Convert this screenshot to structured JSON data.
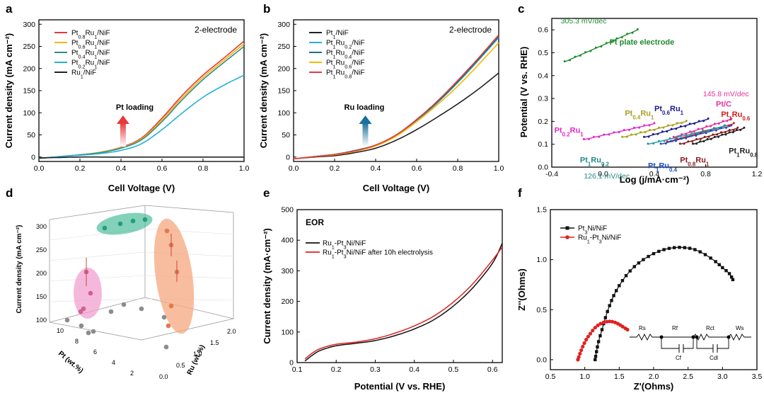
{
  "chart_data": [
    {
      "panel": "a",
      "type": "line",
      "annotation": "2-electrode",
      "arrow_label": "Pt loading",
      "xlabel": "Cell Voltage (V)",
      "ylabel": "Current density (mA cm⁻²)",
      "xlim": [
        0,
        1.0
      ],
      "ylim": [
        -10,
        310
      ],
      "xticks": [
        "0.0",
        "0.2",
        "0.4",
        "0.6",
        "0.8",
        "1.0"
      ],
      "yticks": [
        "0",
        "50",
        "100",
        "150",
        "200",
        "250",
        "300"
      ],
      "x": [
        0,
        0.1,
        0.2,
        0.3,
        0.4,
        0.5,
        0.6,
        0.7,
        0.8,
        0.9,
        1.0
      ],
      "series": [
        {
          "name": "Pt0.8Ru1/NiF",
          "color": "#e8383b",
          "values": [
            -3,
            1,
            5,
            11,
            22,
            43,
            88,
            140,
            185,
            223,
            262
          ]
        },
        {
          "name": "Pt0.6Ru1/NiF",
          "color": "#f5b800",
          "values": [
            -3,
            1,
            5,
            11,
            21,
            41,
            84,
            135,
            180,
            218,
            256
          ]
        },
        {
          "name": "Pt0.4Ru1/NiF",
          "color": "#2e8b8b",
          "values": [
            -3,
            1,
            5,
            10,
            20,
            39,
            80,
            130,
            175,
            213,
            250
          ]
        },
        {
          "name": "Pt0.2Ru1/NiF",
          "color": "#22b2d8",
          "values": [
            -3,
            1,
            4,
            8,
            15,
            30,
            62,
            100,
            135,
            162,
            185
          ]
        },
        {
          "name": "Ru1/NiF",
          "color": "#222222",
          "values": [
            -2,
            -1,
            0,
            0,
            0,
            0,
            0,
            0,
            0,
            0,
            0
          ]
        }
      ]
    },
    {
      "panel": "b",
      "type": "line",
      "annotation": "2-electrode",
      "arrow_label": "Ru loading",
      "xlabel": "Cell Voltage (V)",
      "ylabel": "Current density (mA cm⁻²)",
      "xlim": [
        0,
        1.0
      ],
      "ylim": [
        -10,
        310
      ],
      "xticks": [
        "0.0",
        "0.2",
        "0.4",
        "0.6",
        "0.8",
        "1.0"
      ],
      "yticks": [
        "0",
        "50",
        "100",
        "150",
        "200",
        "250",
        "300"
      ],
      "x": [
        0,
        0.1,
        0.2,
        0.3,
        0.4,
        0.5,
        0.6,
        0.7,
        0.8,
        0.9,
        1.0
      ],
      "series": [
        {
          "name": "Pt1/NiF",
          "color": "#222222",
          "values": [
            -4,
            0,
            3,
            10,
            20,
            38,
            62,
            90,
            120,
            153,
            190
          ]
        },
        {
          "name": "Pt1Ru0.2/NiF",
          "color": "#22b2d8",
          "values": [
            -4,
            1,
            6,
            14,
            26,
            48,
            82,
            122,
            168,
            218,
            270
          ]
        },
        {
          "name": "Pt1Ru0.4/NiF",
          "color": "#1f6f7a",
          "values": [
            -4,
            1,
            6,
            15,
            27,
            50,
            84,
            124,
            170,
            220,
            272
          ]
        },
        {
          "name": "Pt1Ru0.6/NiF",
          "color": "#f5b800",
          "values": [
            -4,
            1,
            5,
            13,
            25,
            47,
            80,
            118,
            160,
            208,
            258
          ]
        },
        {
          "name": "Pt1Ru0.8/NiF",
          "color": "#e8383b",
          "values": [
            -4,
            1,
            6,
            14,
            27,
            50,
            85,
            126,
            173,
            223,
            276
          ]
        }
      ]
    },
    {
      "panel": "c",
      "type": "scatter",
      "xlabel": "Log (j/mA·cm⁻²)",
      "ylabel": "Potential (V vs. RHE)",
      "xlim": [
        -0.4,
        1.2
      ],
      "ylim": [
        0,
        0.65
      ],
      "xticks": [
        "-0.4",
        "0.0",
        "0.4",
        "0.8",
        "1.2"
      ],
      "yticks": [
        "0.0",
        "0.1",
        "0.2",
        "0.3",
        "0.4",
        "0.5",
        "0.6"
      ],
      "series": [
        {
          "name": "Pt plate electrode",
          "color": "#1f8b2e",
          "x": [
            -0.3,
            0.27
          ],
          "y": [
            0.46,
            0.6
          ]
        },
        {
          "name": "Pt0.2Ru1",
          "color": "#e028c9",
          "x": [
            -0.15,
            0.4
          ],
          "y": [
            0.12,
            0.19
          ]
        },
        {
          "name": "Pt0.4Ru1",
          "color": "#a8a020",
          "x": [
            0.15,
            0.65
          ],
          "y": [
            0.13,
            0.2
          ]
        },
        {
          "name": "Pt0.6Ru1",
          "color": "#1a1a8c",
          "x": [
            0.32,
            0.82
          ],
          "y": [
            0.13,
            0.21
          ]
        },
        {
          "name": "Pt/C",
          "color": "#e8309a",
          "x": [
            0.55,
            1.0
          ],
          "y": [
            0.13,
            0.21
          ]
        },
        {
          "name": "Pt1Ru0.6",
          "color": "#d41a1a",
          "x": [
            0.5,
            1.02
          ],
          "y": [
            0.11,
            0.19
          ]
        },
        {
          "name": "Pt1Ru0.2",
          "color": "#1d9c9c",
          "x": [
            0.35,
            0.95
          ],
          "y": [
            0.1,
            0.18
          ]
        },
        {
          "name": "Pt1Ru0.4",
          "color": "#1f4fc8",
          "x": [
            0.45,
            1.0
          ],
          "y": [
            0.1,
            0.18
          ]
        },
        {
          "name": "Pt0.8Ru1",
          "color": "#8b1a1a",
          "x": [
            0.6,
            1.05
          ],
          "y": [
            0.1,
            0.17
          ]
        },
        {
          "name": "Pt1Ru0.8",
          "color": "#222222",
          "x": [
            0.7,
            1.1
          ],
          "y": [
            0.1,
            0.17
          ]
        }
      ],
      "annotations": {
        "pt_slope": "305.3 mV/dec",
        "pt_label": "Pt plate electrode",
        "ptc_slope": "145.8 mV/dec",
        "ptc_label": "Pt/C",
        "low_slope": "126.1 mV/dec"
      }
    },
    {
      "panel": "d",
      "type": "scatter",
      "zlabel": "Current density (mA cm⁻²)",
      "xlabel": "Pt (wt.%)",
      "ylabel": "Ru (wt.%)",
      "zticks": [
        "100",
        "150",
        "200",
        "250",
        "300"
      ],
      "xticks": [
        "10",
        "8",
        "6",
        "4",
        "2"
      ],
      "yticks": [
        "0.0",
        "0.5",
        "1.0",
        "1.5",
        "2.0"
      ]
    },
    {
      "panel": "e",
      "type": "line",
      "annotation": "EOR",
      "xlabel": "Potential  (V vs. RHE)",
      "ylabel": "Current density  (mA·cm⁻²)",
      "xlim": [
        0.1,
        0.625
      ],
      "ylim": [
        0,
        500
      ],
      "xticks": [
        "0.1",
        "0.2",
        "0.3",
        "0.4",
        "0.5",
        "0.6"
      ],
      "yticks": [
        "0",
        "100",
        "200",
        "300",
        "400",
        "500"
      ],
      "x": [
        0.12,
        0.14,
        0.16,
        0.2,
        0.25,
        0.3,
        0.35,
        0.4,
        0.45,
        0.5,
        0.55,
        0.6,
        0.625
      ],
      "series": [
        {
          "name": "Ru1-Pt3Ni/NiF",
          "color": "#111111",
          "values": [
            5,
            25,
            40,
            55,
            63,
            72,
            88,
            110,
            140,
            185,
            245,
            325,
            390
          ]
        },
        {
          "name": "Ru1-Pt3Ni/NiF after 10h electrolysis",
          "color": "#e02020",
          "values": [
            12,
            32,
            46,
            60,
            67,
            78,
            96,
            120,
            152,
            198,
            258,
            335,
            378
          ]
        }
      ]
    },
    {
      "panel": "f",
      "type": "scatter",
      "xlabel": "Z'(Ohms)",
      "ylabel": "Z''(Ohms)",
      "xlim": [
        0.5,
        3.5
      ],
      "ylim": [
        -0.1,
        1.5
      ],
      "xticks": [
        "0.5",
        "1.0",
        "1.5",
        "2.0",
        "2.5",
        "3.0",
        "3.5"
      ],
      "yticks": [
        "0.0",
        "0.5",
        "1.0",
        "1.5"
      ],
      "series": [
        {
          "name": "Pt3Ni/NiF",
          "color": "#111111",
          "x": [
            1.15,
            1.17,
            1.2,
            1.25,
            1.3,
            1.36,
            1.42,
            1.5,
            1.6,
            1.72,
            1.85,
            2.0,
            2.15,
            2.3,
            2.45,
            2.6,
            2.75,
            2.9,
            3.0,
            3.1,
            3.15
          ],
          "y": [
            0.0,
            0.08,
            0.18,
            0.3,
            0.42,
            0.54,
            0.64,
            0.74,
            0.84,
            0.93,
            1.0,
            1.06,
            1.1,
            1.12,
            1.12,
            1.1,
            1.05,
            0.98,
            0.92,
            0.86,
            0.8
          ]
        },
        {
          "name": "Ru1-Pt3Ni/NiF",
          "color": "#e02020",
          "x": [
            0.9,
            0.93,
            0.97,
            1.02,
            1.08,
            1.15,
            1.23,
            1.32,
            1.4,
            1.48,
            1.55,
            1.62
          ],
          "y": [
            0.0,
            0.06,
            0.13,
            0.2,
            0.26,
            0.32,
            0.36,
            0.38,
            0.38,
            0.36,
            0.33,
            0.3
          ]
        }
      ],
      "circuit": {
        "rs": "Rs",
        "rf": "Rf",
        "rct": "Rct",
        "ws": "Ws",
        "cf": "Cf",
        "cdl": "Cdl"
      }
    }
  ]
}
